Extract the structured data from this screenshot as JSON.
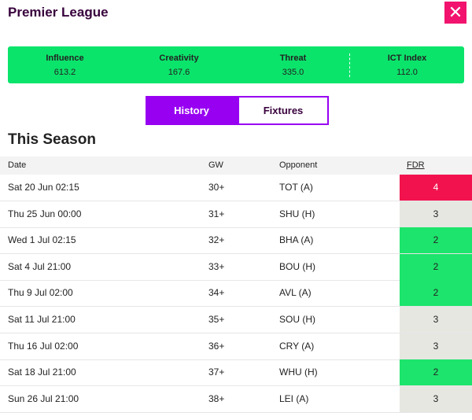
{
  "header": {
    "brand": "Premier League",
    "close": "✕"
  },
  "stats": [
    {
      "label": "Influence",
      "value": "613.2"
    },
    {
      "label": "Creativity",
      "value": "167.6"
    },
    {
      "label": "Threat",
      "value": "335.0"
    },
    {
      "label": "ICT Index",
      "value": "112.0"
    }
  ],
  "tabs": [
    "History",
    "Fixtures"
  ],
  "section_title": "This Season",
  "table": {
    "columns": [
      "Date",
      "GW",
      "Opponent",
      "FDR"
    ],
    "rows": [
      [
        "Sat 20 Jun 02:15",
        "30+",
        "TOT (A)",
        "4"
      ],
      [
        "Thu 25 Jun 00:00",
        "31+",
        "SHU (H)",
        "3"
      ],
      [
        "Wed 1 Jul 02:15",
        "32+",
        "BHA (A)",
        "2"
      ],
      [
        "Sat 4 Jul 21:00",
        "33+",
        "BOU (H)",
        "2"
      ],
      [
        "Thu 9 Jul 02:00",
        "34+",
        "AVL (A)",
        "2"
      ],
      [
        "Sat 11 Jul 21:00",
        "35+",
        "SOU (H)",
        "3"
      ],
      [
        "Thu 16 Jul 02:00",
        "36+",
        "CRY (A)",
        "3"
      ],
      [
        "Sat 18 Jul 21:00",
        "37+",
        "WHU (H)",
        "2"
      ],
      [
        "Sun 26 Jul 21:00",
        "38+",
        "LEI (A)",
        "3"
      ]
    ],
    "fdr_colors": {
      "2": "#1de46c",
      "3": "#e7e7e2",
      "4": "#f2134e"
    },
    "fdr_text_colors": {
      "2": "#222222",
      "3": "#222222",
      "4": "#ffffff"
    }
  }
}
